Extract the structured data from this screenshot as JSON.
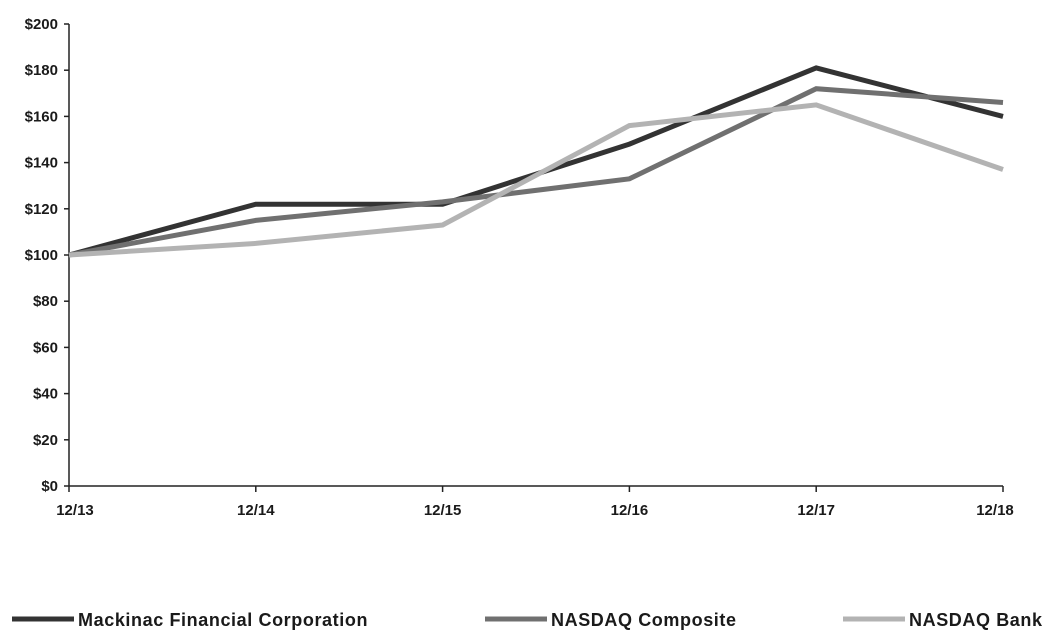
{
  "chart_data": {
    "type": "line",
    "title": "",
    "xlabel": "",
    "ylabel": "",
    "categories": [
      "12/13",
      "12/14",
      "12/15",
      "12/16",
      "12/17",
      "12/18"
    ],
    "y_ticks": [
      "$0",
      "$20",
      "$40",
      "$60",
      "$80",
      "$100",
      "$120",
      "$140",
      "$160",
      "$180",
      "$200"
    ],
    "ylim": [
      0,
      200
    ],
    "grid": false,
    "legend_position": "bottom",
    "series": [
      {
        "name": "Mackinac Financial Corporation",
        "color": "#333333",
        "values": [
          100,
          122,
          122,
          148,
          181,
          160
        ]
      },
      {
        "name": "NASDAQ Composite",
        "color": "#707070",
        "values": [
          100,
          115,
          123,
          133,
          172,
          166
        ]
      },
      {
        "name": "NASDAQ Bank",
        "color": "#b3b3b3",
        "values": [
          100,
          105,
          113,
          156,
          165,
          137
        ]
      }
    ]
  }
}
